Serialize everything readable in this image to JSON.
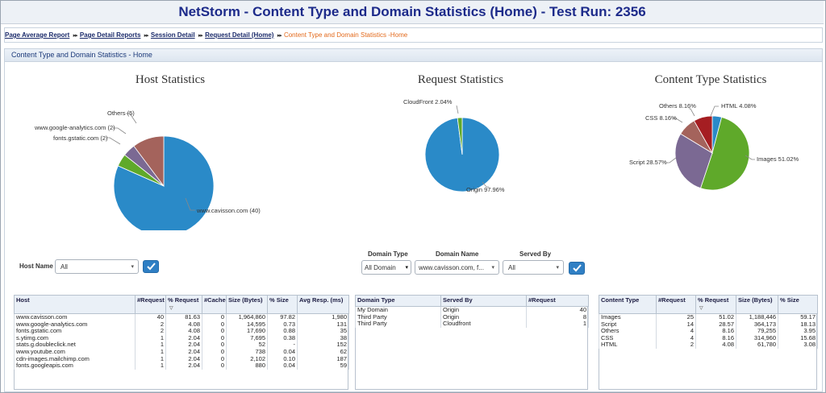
{
  "title": "NetStorm - Content Type and Domain Statistics (Home) - Test Run: 2356",
  "breadcrumb": {
    "items": [
      "Page Average Report",
      "Page Detail Reports",
      "Session Detail",
      "Request Detail (Home)"
    ],
    "current": "Content Type and Domain Statistics -Home",
    "separator": "▸▸"
  },
  "section_title": "Content Type and Domain Statistics - Home",
  "charts": {
    "host_title": "Host Statistics",
    "request_title": "Request Statistics",
    "content_title": "Content Type Statistics"
  },
  "chart_data": [
    {
      "type": "pie",
      "title": "Host Statistics",
      "labels": [
        "www.cavisson.com (40)",
        "fonts.gstatic.com (2)",
        "www.google-analytics.com (2)",
        "Others (5)"
      ],
      "values": [
        40,
        2,
        2,
        5
      ],
      "colors": [
        "#2a8ac8",
        "#5fa92a",
        "#7b6993",
        "#a4635c"
      ]
    },
    {
      "type": "pie",
      "title": "Request Statistics",
      "labels": [
        "Origin 97.96%",
        "CloudFront 2.04%"
      ],
      "values": [
        97.96,
        2.04
      ],
      "colors": [
        "#2a8ac8",
        "#5fa92a"
      ]
    },
    {
      "type": "pie",
      "title": "Content Type Statistics",
      "labels": [
        "HTML 4.08%",
        "Images 51.02%",
        "Script 28.57%",
        "CSS 8.16%",
        "Others 8.16%"
      ],
      "values": [
        4.08,
        51.02,
        28.57,
        8.16,
        8.16
      ],
      "colors": [
        "#2a8ac8",
        "#5fa92a",
        "#7b6993",
        "#a4635c",
        "#a51e22"
      ]
    }
  ],
  "host_filter": {
    "label": "Host Name",
    "value": "All"
  },
  "domain_filter": {
    "type_label": "Domain Type",
    "type_value": "All Domain",
    "name_label": "Domain Name",
    "name_value": "www.cavisson.com, f...",
    "served_label": "Served By",
    "served_value": "All"
  },
  "host_table": {
    "headers": [
      "Host",
      "#Request",
      "% Request",
      "#Cache",
      "Size (Bytes)",
      "% Size",
      "Avg Resp. (ms)"
    ],
    "rows": [
      [
        "www.cavisson.com",
        "40",
        "81.63",
        "0",
        "1,964,860",
        "97.82",
        "1,980"
      ],
      [
        "www.google-analytics.com",
        "2",
        "4.08",
        "0",
        "14,595",
        "0.73",
        "131"
      ],
      [
        "fonts.gstatic.com",
        "2",
        "4.08",
        "0",
        "17,690",
        "0.88",
        "35"
      ],
      [
        "s.ytimg.com",
        "1",
        "2.04",
        "0",
        "7,695",
        "0.38",
        "38"
      ],
      [
        "stats.g.doubleclick.net",
        "1",
        "2.04",
        "0",
        "52",
        "-",
        "152"
      ],
      [
        "www.youtube.com",
        "1",
        "2.04",
        "0",
        "738",
        "0.04",
        "62"
      ],
      [
        "cdn-images.mailchimp.com",
        "1",
        "2.04",
        "0",
        "2,102",
        "0.10",
        "187"
      ],
      [
        "fonts.googleapis.com",
        "1",
        "2.04",
        "0",
        "880",
        "0.04",
        "59"
      ]
    ]
  },
  "domain_table": {
    "headers": [
      "Domain Type",
      "Served By",
      "#Request"
    ],
    "rows": [
      [
        "My Domain",
        "Origin",
        "40"
      ],
      [
        "Third Party",
        "Origin",
        "8"
      ],
      [
        "Third Party",
        "Cloudfront",
        "1"
      ]
    ]
  },
  "content_table": {
    "headers": [
      "Content Type",
      "#Request",
      "% Request",
      "Size (Bytes)",
      "% Size"
    ],
    "rows": [
      [
        "Images",
        "25",
        "51.02",
        "1,188,446",
        "59.17"
      ],
      [
        "Script",
        "14",
        "28.57",
        "364,173",
        "18.13"
      ],
      [
        "Others",
        "4",
        "8.16",
        "79,255",
        "3.95"
      ],
      [
        "CSS",
        "4",
        "8.16",
        "314,960",
        "15.68"
      ],
      [
        "HTML",
        "2",
        "4.08",
        "61,780",
        "3.08"
      ]
    ]
  },
  "icons": {
    "caret": "▾",
    "sort": "▽"
  },
  "colors": {
    "title_text": "#1c2a8a",
    "breadcrumb_current": "#e36a1c",
    "button": "#2f7fc4"
  }
}
